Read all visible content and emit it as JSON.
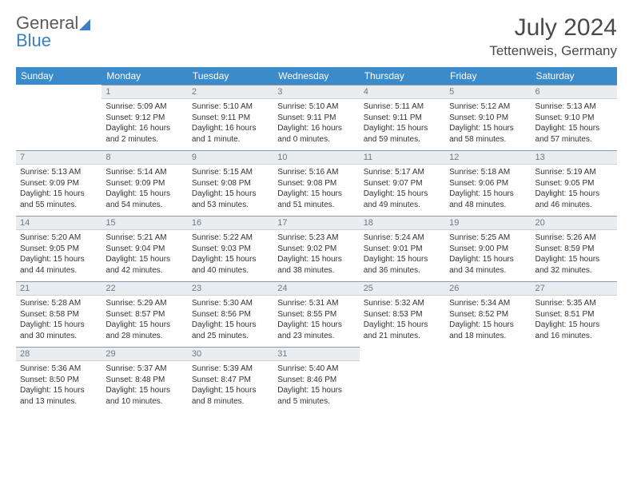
{
  "logo": {
    "word1": "General",
    "word2": "Blue"
  },
  "title": "July 2024",
  "subtitle": "Tettenweis, Germany",
  "colors": {
    "header_bg": "#3b8bca",
    "header_text": "#ffffff",
    "daynum_bg": "#e9edf0",
    "daynum_border_top": "#8a9aa8",
    "daynum_text": "#6b7a87",
    "logo_blue": "#3b7fc4",
    "logo_gray": "#5a5a5a",
    "body_text": "#333333"
  },
  "weekdays": [
    "Sunday",
    "Monday",
    "Tuesday",
    "Wednesday",
    "Thursday",
    "Friday",
    "Saturday"
  ],
  "weeks": [
    [
      null,
      {
        "n": "1",
        "sr": "5:09 AM",
        "ss": "9:12 PM",
        "dl": "16 hours and 2 minutes."
      },
      {
        "n": "2",
        "sr": "5:10 AM",
        "ss": "9:11 PM",
        "dl": "16 hours and 1 minute."
      },
      {
        "n": "3",
        "sr": "5:10 AM",
        "ss": "9:11 PM",
        "dl": "16 hours and 0 minutes."
      },
      {
        "n": "4",
        "sr": "5:11 AM",
        "ss": "9:11 PM",
        "dl": "15 hours and 59 minutes."
      },
      {
        "n": "5",
        "sr": "5:12 AM",
        "ss": "9:10 PM",
        "dl": "15 hours and 58 minutes."
      },
      {
        "n": "6",
        "sr": "5:13 AM",
        "ss": "9:10 PM",
        "dl": "15 hours and 57 minutes."
      }
    ],
    [
      {
        "n": "7",
        "sr": "5:13 AM",
        "ss": "9:09 PM",
        "dl": "15 hours and 55 minutes."
      },
      {
        "n": "8",
        "sr": "5:14 AM",
        "ss": "9:09 PM",
        "dl": "15 hours and 54 minutes."
      },
      {
        "n": "9",
        "sr": "5:15 AM",
        "ss": "9:08 PM",
        "dl": "15 hours and 53 minutes."
      },
      {
        "n": "10",
        "sr": "5:16 AM",
        "ss": "9:08 PM",
        "dl": "15 hours and 51 minutes."
      },
      {
        "n": "11",
        "sr": "5:17 AM",
        "ss": "9:07 PM",
        "dl": "15 hours and 49 minutes."
      },
      {
        "n": "12",
        "sr": "5:18 AM",
        "ss": "9:06 PM",
        "dl": "15 hours and 48 minutes."
      },
      {
        "n": "13",
        "sr": "5:19 AM",
        "ss": "9:05 PM",
        "dl": "15 hours and 46 minutes."
      }
    ],
    [
      {
        "n": "14",
        "sr": "5:20 AM",
        "ss": "9:05 PM",
        "dl": "15 hours and 44 minutes."
      },
      {
        "n": "15",
        "sr": "5:21 AM",
        "ss": "9:04 PM",
        "dl": "15 hours and 42 minutes."
      },
      {
        "n": "16",
        "sr": "5:22 AM",
        "ss": "9:03 PM",
        "dl": "15 hours and 40 minutes."
      },
      {
        "n": "17",
        "sr": "5:23 AM",
        "ss": "9:02 PM",
        "dl": "15 hours and 38 minutes."
      },
      {
        "n": "18",
        "sr": "5:24 AM",
        "ss": "9:01 PM",
        "dl": "15 hours and 36 minutes."
      },
      {
        "n": "19",
        "sr": "5:25 AM",
        "ss": "9:00 PM",
        "dl": "15 hours and 34 minutes."
      },
      {
        "n": "20",
        "sr": "5:26 AM",
        "ss": "8:59 PM",
        "dl": "15 hours and 32 minutes."
      }
    ],
    [
      {
        "n": "21",
        "sr": "5:28 AM",
        "ss": "8:58 PM",
        "dl": "15 hours and 30 minutes."
      },
      {
        "n": "22",
        "sr": "5:29 AM",
        "ss": "8:57 PM",
        "dl": "15 hours and 28 minutes."
      },
      {
        "n": "23",
        "sr": "5:30 AM",
        "ss": "8:56 PM",
        "dl": "15 hours and 25 minutes."
      },
      {
        "n": "24",
        "sr": "5:31 AM",
        "ss": "8:55 PM",
        "dl": "15 hours and 23 minutes."
      },
      {
        "n": "25",
        "sr": "5:32 AM",
        "ss": "8:53 PM",
        "dl": "15 hours and 21 minutes."
      },
      {
        "n": "26",
        "sr": "5:34 AM",
        "ss": "8:52 PM",
        "dl": "15 hours and 18 minutes."
      },
      {
        "n": "27",
        "sr": "5:35 AM",
        "ss": "8:51 PM",
        "dl": "15 hours and 16 minutes."
      }
    ],
    [
      {
        "n": "28",
        "sr": "5:36 AM",
        "ss": "8:50 PM",
        "dl": "15 hours and 13 minutes."
      },
      {
        "n": "29",
        "sr": "5:37 AM",
        "ss": "8:48 PM",
        "dl": "15 hours and 10 minutes."
      },
      {
        "n": "30",
        "sr": "5:39 AM",
        "ss": "8:47 PM",
        "dl": "15 hours and 8 minutes."
      },
      {
        "n": "31",
        "sr": "5:40 AM",
        "ss": "8:46 PM",
        "dl": "15 hours and 5 minutes."
      },
      null,
      null,
      null
    ]
  ],
  "labels": {
    "sunrise": "Sunrise: ",
    "sunset": "Sunset: ",
    "daylight": "Daylight: "
  }
}
